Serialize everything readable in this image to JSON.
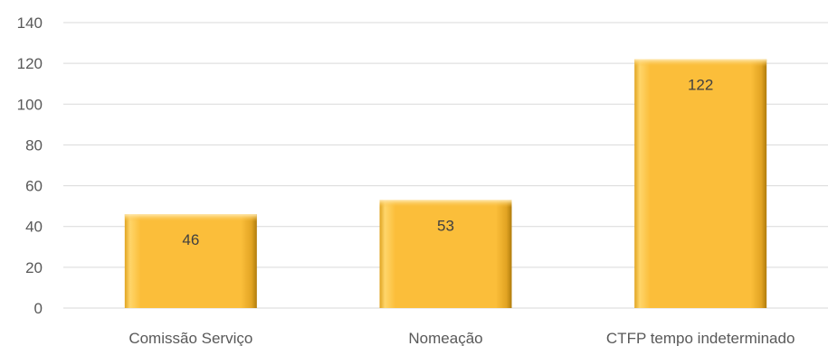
{
  "chart_data": {
    "type": "bar",
    "categories": [
      "Comissão Serviço",
      "Nomeação",
      "CTFP tempo indeterminado"
    ],
    "values": [
      46,
      53,
      122
    ],
    "data_labels": [
      "46",
      "53",
      "122"
    ],
    "ylim": [
      0,
      140
    ],
    "yticks": [
      0,
      20,
      40,
      60,
      80,
      100,
      120,
      140
    ],
    "ytick_labels": [
      "0",
      "20",
      "40",
      "60",
      "80",
      "100",
      "120",
      "140"
    ],
    "grid": true,
    "legend": "none",
    "colors": {
      "bar_fill": "#FBBE3A",
      "bar_edge_light": "#FFE39A",
      "bar_edge_dark": "#C98F10",
      "grid": "#D9D9D9",
      "text": "#595959"
    }
  }
}
